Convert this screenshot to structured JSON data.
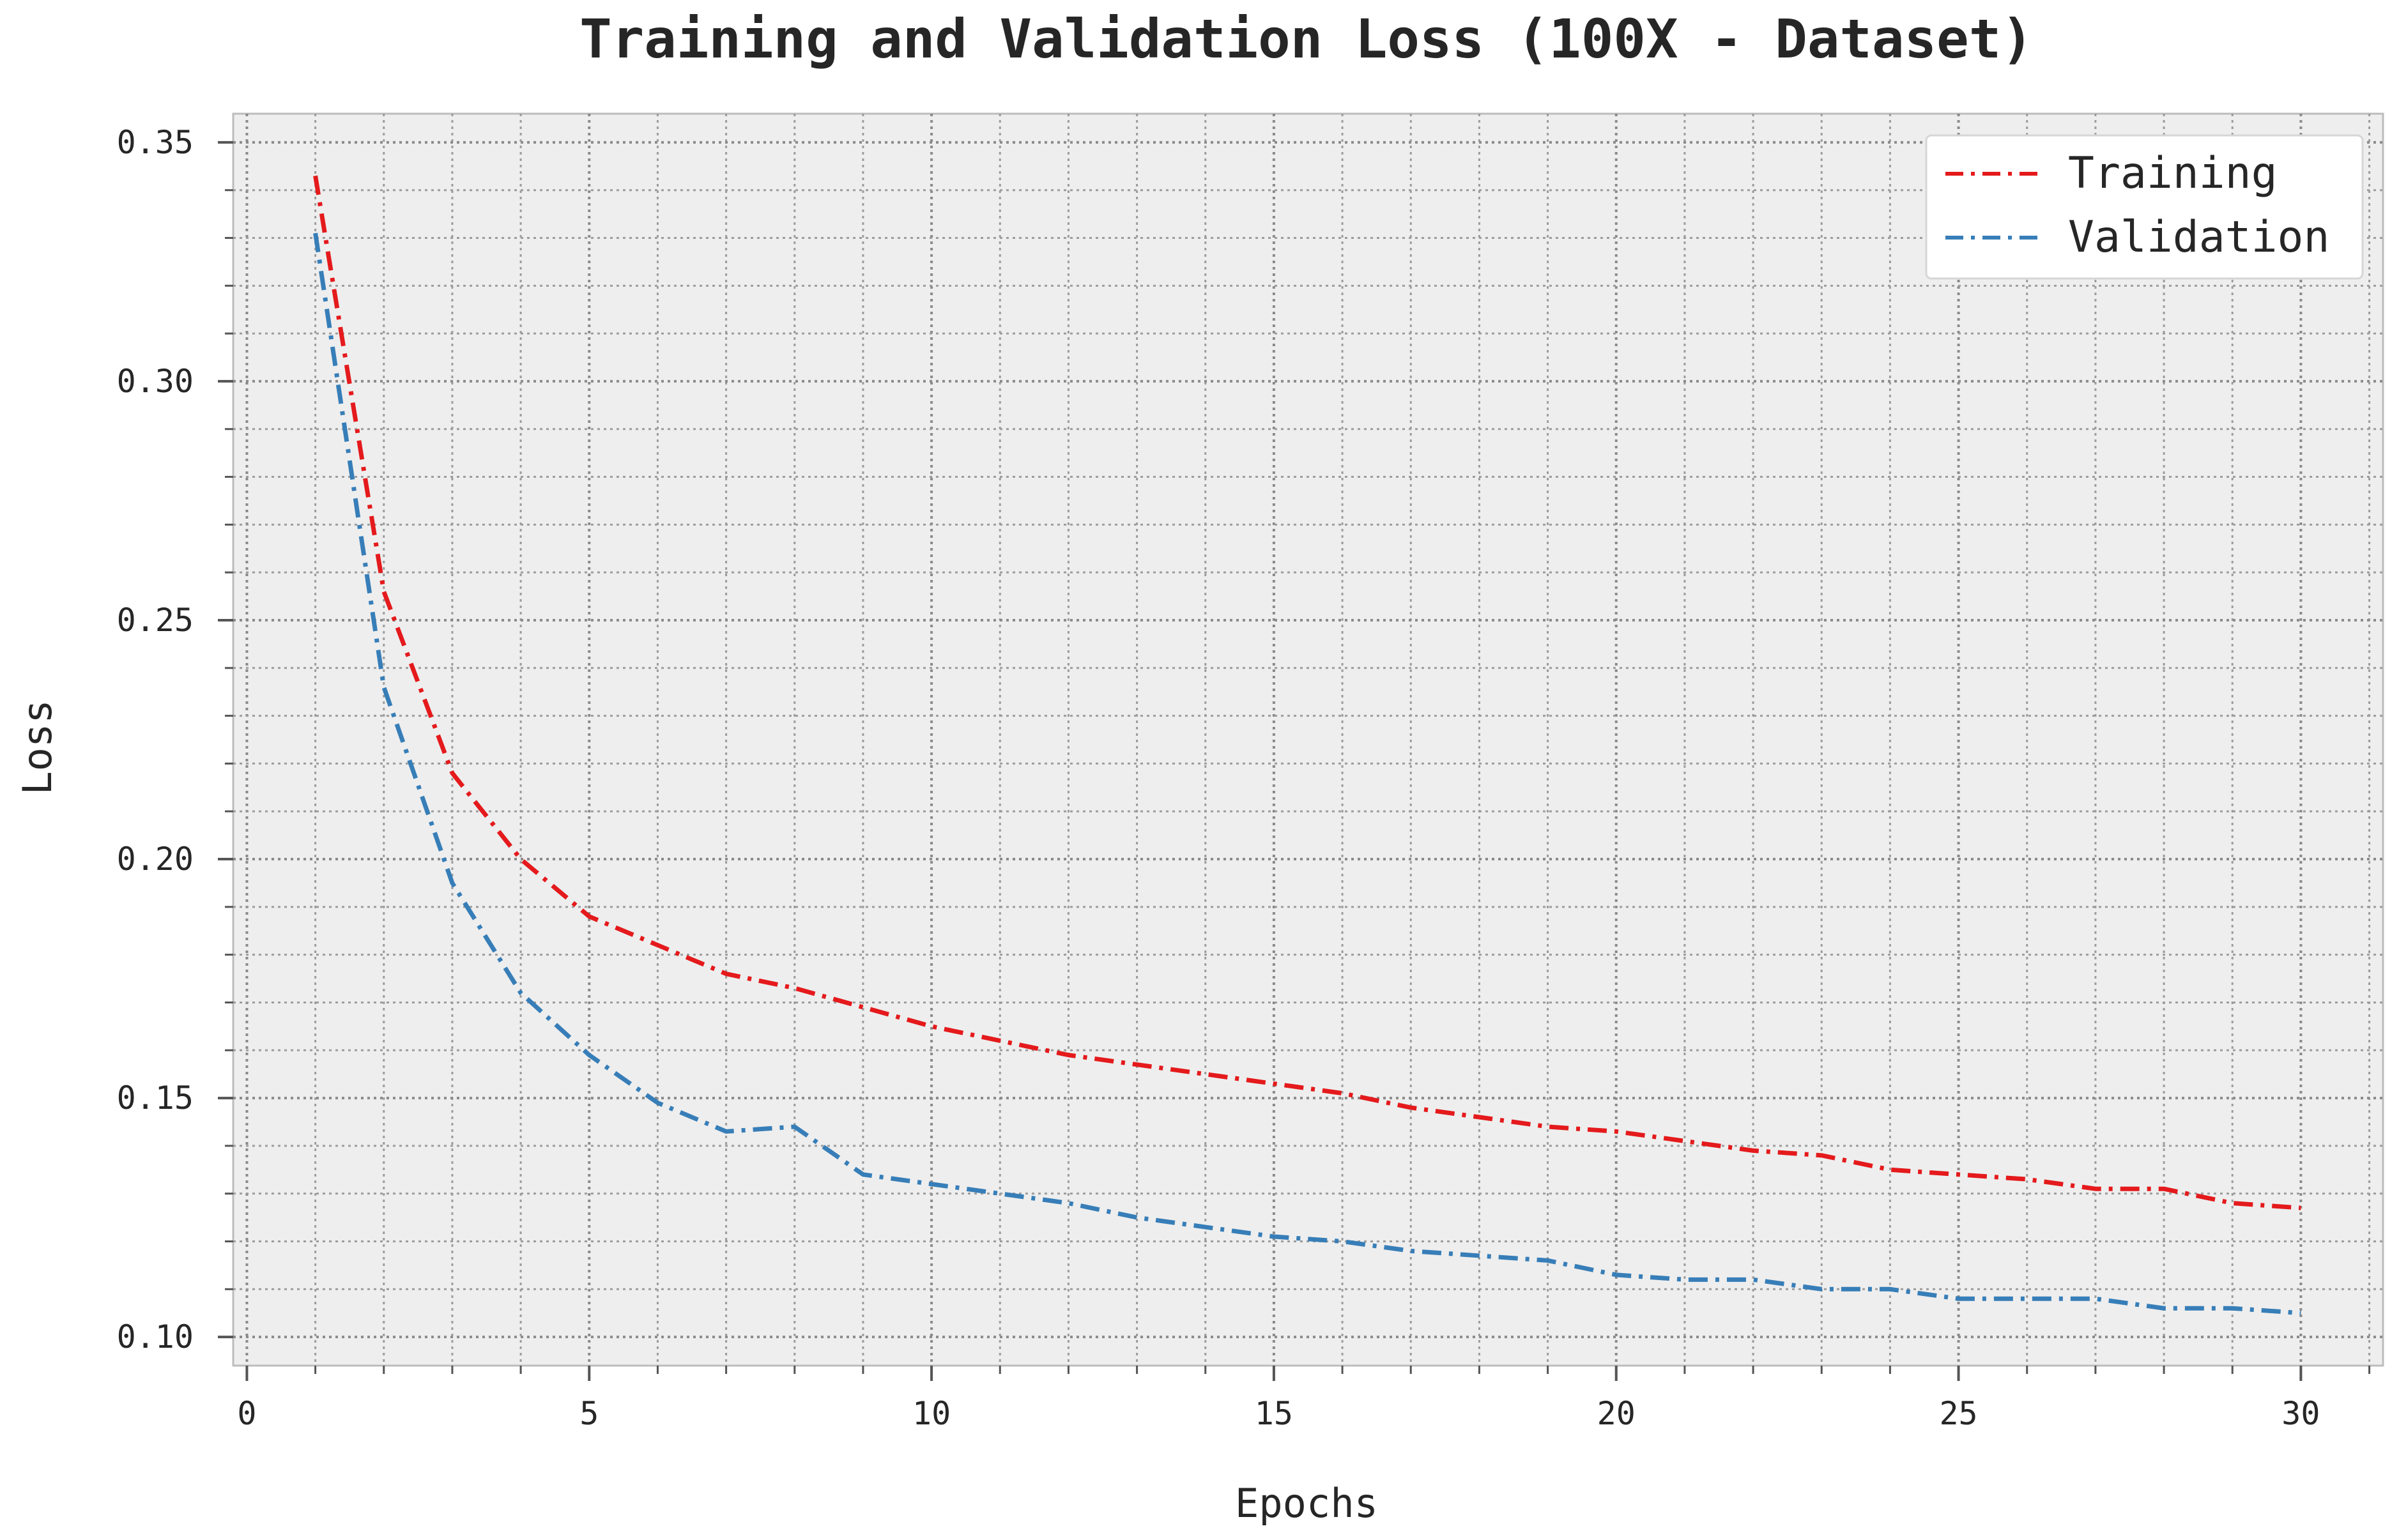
{
  "chart_data": {
    "type": "line",
    "title": "Training and Validation Loss (100X - Dataset)",
    "xlabel": "Epochs",
    "ylabel": "Loss",
    "xlim": [
      -0.2,
      31.2
    ],
    "ylim": [
      0.094,
      0.356
    ],
    "xticks": [
      0,
      5,
      10,
      15,
      20,
      25,
      30
    ],
    "yticks": [
      0.1,
      0.15,
      0.2,
      0.25,
      0.3,
      0.35
    ],
    "xtick_labels": [
      "0",
      "5",
      "10",
      "15",
      "20",
      "25",
      "30"
    ],
    "ytick_labels": [
      "0.10",
      "0.15",
      "0.20",
      "0.25",
      "0.30",
      "0.35"
    ],
    "grid": true,
    "legend_position": "top-right",
    "x": [
      1,
      2,
      3,
      4,
      5,
      6,
      7,
      8,
      9,
      10,
      11,
      12,
      13,
      14,
      15,
      16,
      17,
      18,
      19,
      20,
      21,
      22,
      23,
      24,
      25,
      26,
      27,
      28,
      29,
      30
    ],
    "series": [
      {
        "name": "Training",
        "color": "#e41a1c",
        "values": [
          0.343,
          0.256,
          0.218,
          0.2,
          0.188,
          0.182,
          0.176,
          0.173,
          0.169,
          0.165,
          0.162,
          0.159,
          0.157,
          0.155,
          0.153,
          0.151,
          0.148,
          0.146,
          0.144,
          0.143,
          0.141,
          0.139,
          0.138,
          0.135,
          0.134,
          0.133,
          0.131,
          0.131,
          0.128,
          0.127
        ]
      },
      {
        "name": "Validation",
        "color": "#377eb8",
        "values": [
          0.331,
          0.236,
          0.195,
          0.172,
          0.159,
          0.149,
          0.143,
          0.144,
          0.134,
          0.132,
          0.13,
          0.128,
          0.125,
          0.123,
          0.121,
          0.12,
          0.118,
          0.117,
          0.116,
          0.113,
          0.112,
          0.112,
          0.11,
          0.11,
          0.108,
          0.108,
          0.108,
          0.106,
          0.106,
          0.105
        ]
      }
    ]
  }
}
